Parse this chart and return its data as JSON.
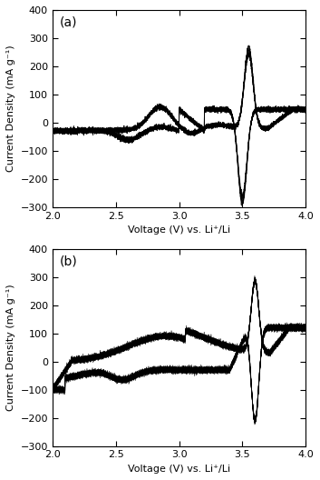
{
  "title_a": "(a)",
  "title_b": "(b)",
  "ylabel": "Current Density (mA g⁻¹)",
  "xlabel": "Voltage (V) vs. Li⁺/Li",
  "xlim": [
    2.0,
    4.0
  ],
  "ylim": [
    -300,
    400
  ],
  "yticks": [
    -300,
    -200,
    -100,
    0,
    100,
    200,
    300,
    400
  ],
  "xticks": [
    2.0,
    2.5,
    3.0,
    3.5,
    4.0
  ],
  "line_color": "#000000",
  "background_color": "#ffffff",
  "n_cycles_a": 5
}
